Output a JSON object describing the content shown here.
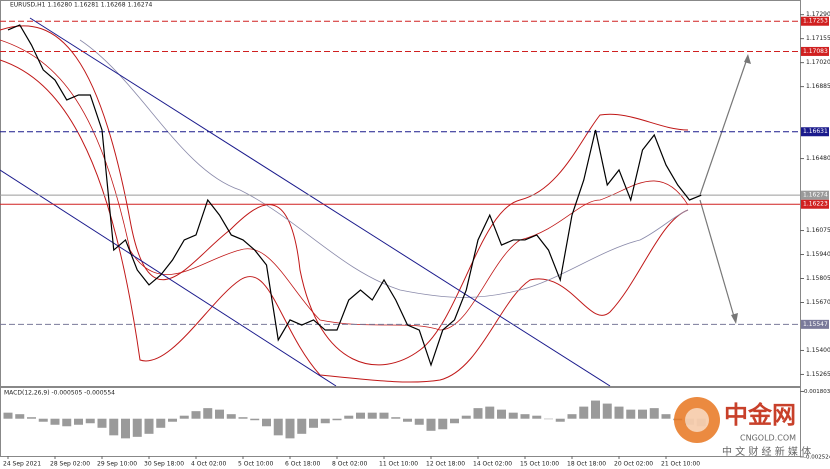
{
  "header": {
    "symbol": "EURUSD,H1  1.16280 1.16281 1.16268 1.16274"
  },
  "watermark": {
    "brand": "中金网",
    "site": "CNGOLD.COM",
    "slogan": "中 文 财 经 新 媒 体"
  },
  "chart_data": [
    {
      "type": "line",
      "categories": [
        "24 Sep 2021",
        null,
        null,
        null,
        "28 Sep 02:00",
        null,
        null,
        null,
        "29 Sep 10:00",
        null,
        null,
        null,
        "30 Sep 18:00",
        null,
        null,
        null,
        "4 Oct 02:00",
        null,
        null,
        null,
        "5 Oct 10:00",
        null,
        null,
        null,
        "6 Oct 18:00",
        null,
        null,
        null,
        "8 Oct 02:00",
        null,
        null,
        null,
        "11 Oct 10:00",
        null,
        null,
        null,
        "12 Oct 18:00",
        null,
        null,
        null,
        "14 Oct 02:00",
        null,
        null,
        null,
        "15 Oct 10:00",
        null,
        null,
        null,
        "18 Oct 18:00",
        null,
        null,
        null,
        "20 Oct 02:00",
        null,
        null,
        null,
        "21 Oct 10:00",
        null,
        null,
        null
      ],
      "series": [
        {
          "color": "#000000",
          "values": [
            1.17204,
            1.17232,
            1.17119,
            1.16979,
            1.16922,
            1.1681,
            1.16838,
            1.16838,
            1.16641,
            1.15965,
            1.16022,
            1.15853,
            1.15769,
            1.15825,
            1.15909,
            1.16022,
            1.1605,
            1.16247,
            1.16162,
            1.1605,
            1.16022,
            1.15965,
            1.15881,
            1.15459,
            1.15572,
            1.15543,
            1.15572,
            1.15515,
            1.15515,
            1.15684,
            1.1574,
            1.15684,
            1.15797,
            1.15684,
            1.15543,
            1.15515,
            1.15318,
            1.15515,
            1.15572,
            1.1574,
            1.16022,
            1.16162,
            1.15993,
            1.16022,
            1.16022,
            1.1605,
            1.15965,
            1.15797,
            1.16162,
            1.16359,
            1.16641,
            1.16331,
            1.16416,
            1.16247,
            1.16528,
            1.16613,
            1.16444,
            1.16331,
            1.16247,
            1.16274
          ]
        }
      ],
      "ylim": [
        1.152,
        1.1735
      ],
      "yticks": [
        {
          "value": 1.1729,
          "label": "1.17290"
        },
        1.17155,
        {
          "value": 1.1702,
          "label": "1.17020"
        },
        1.16885,
        {
          "value": 1.1648,
          "label": "1.16480"
        },
        1.16075,
        {
          "value": 1.1594,
          "label": "1.15940"
        },
        1.15805,
        {
          "value": 1.1567,
          "label": "1.15670"
        },
        {
          "value": 1.154,
          "label": "1.15400"
        },
        1.15265
      ],
      "levels": [
        {
          "value": 1.17253,
          "color": "#d02020",
          "style": "dashed"
        },
        {
          "value": 1.17083,
          "color": "#d02020",
          "style": "dashed"
        },
        {
          "value": 1.16631,
          "color": "#1a1a8c",
          "style": "dashed"
        },
        {
          "value": 1.16274,
          "color": "#9a9a9a",
          "style": "solid"
        },
        {
          "value": 1.16223,
          "color": "#d02020",
          "style": "solid"
        },
        {
          "value": 1.15547,
          "color": "#7a7a9a",
          "style": "dashed"
        }
      ]
    },
    {
      "type": "bar",
      "title": "MACD(12,26,9) -0.000505 -0.000554",
      "color": "#9a9a9a",
      "values": [
        0.0004,
        0.0003,
        0.0001,
        -0.0002,
        -0.0004,
        -0.0005,
        -0.0004,
        -0.0003,
        -0.0006,
        -0.0011,
        -0.0013,
        -0.0012,
        -0.001,
        -0.0006,
        -0.0002,
        0.0002,
        0.0005,
        0.0007,
        0.0006,
        0.0003,
        0.0001,
        -0.0001,
        -0.0005,
        -0.0011,
        -0.0013,
        -0.001,
        -0.0006,
        -0.0003,
        -0.0001,
        0.0002,
        0.0004,
        0.0004,
        0.0004,
        0.0001,
        -0.0002,
        -0.0004,
        -0.0008,
        -0.0007,
        -0.0003,
        0.0002,
        0.0007,
        0.0008,
        0.0006,
        0.0004,
        0.0003,
        0.0002,
        0,
        -0.0002,
        0.0003,
        0.0008,
        0.0012,
        0.001,
        0.0008,
        0.0006,
        0.0006,
        0.0007,
        0.0003,
        -0.0001,
        -0.0004,
        -0.0005
      ],
      "ylim": [
        -0.0026,
        0.0019
      ],
      "yticks": [
        0.001803,
        -0.002524
      ]
    }
  ]
}
